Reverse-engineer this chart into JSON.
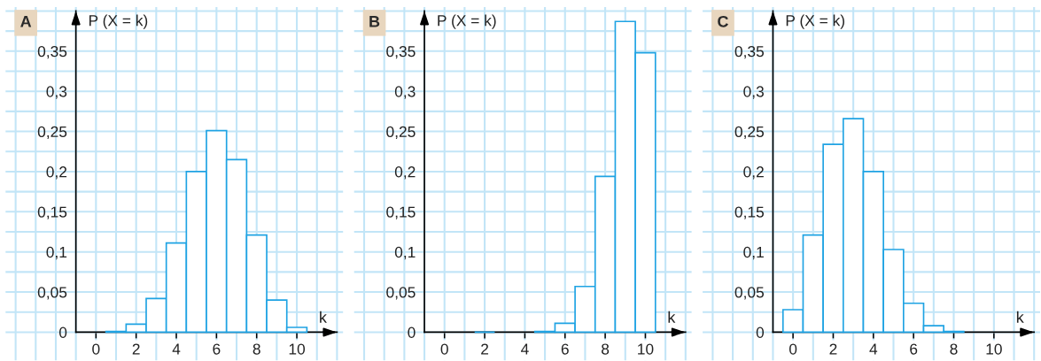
{
  "chart_data": [
    {
      "type": "histogram",
      "title": "A",
      "xlabel": "k",
      "ylabel": "P (X = k)",
      "bins": [
        -0.5,
        0.5,
        1.5,
        2.5,
        3.5,
        4.5,
        5.5,
        6.5,
        7.5,
        8.5,
        9.5,
        10.5
      ],
      "values": [
        null,
        0.001,
        0.01,
        0.042,
        0.111,
        0.2,
        0.251,
        0.215,
        0.121,
        0.04,
        0.006
      ],
      "color": "#1fa3e3",
      "xlim": [
        -4.5,
        12.3
      ],
      "ylim": [
        -0.035,
        0.405
      ],
      "xticks": [
        0,
        2,
        4,
        6,
        8,
        10
      ],
      "yticks": [
        0,
        {
          "value": 0.05,
          "label": "0,05"
        },
        {
          "value": 0.1,
          "label": "0,1"
        },
        {
          "value": 0.15,
          "label": "0,15"
        },
        {
          "value": 0.2,
          "label": "0,2"
        },
        {
          "value": 0.25,
          "label": "0,25"
        },
        {
          "value": 0.3,
          "label": "0,3"
        },
        {
          "value": 0.35,
          "label": "0,35"
        }
      ],
      "grid": true
    },
    {
      "type": "histogram",
      "title": "B",
      "xlabel": "k",
      "ylabel": "P (X = k)",
      "bins": [
        -0.5,
        0.5,
        1.5,
        2.5,
        3.5,
        4.5,
        5.5,
        6.5,
        7.5,
        8.5,
        9.5,
        10.5
      ],
      "values": [
        null,
        null,
        0,
        null,
        null,
        0.001,
        0.011,
        0.057,
        0.194,
        0.387,
        0.348
      ],
      "color": "#1fa3e3",
      "xlim": [
        -4.5,
        12.3
      ],
      "ylim": [
        -0.035,
        0.405
      ],
      "xticks": [
        0,
        2,
        4,
        6,
        8,
        10
      ],
      "yticks": [
        0,
        {
          "value": 0.05,
          "label": "0,05"
        },
        {
          "value": 0.1,
          "label": "0,1"
        },
        {
          "value": 0.15,
          "label": "0,15"
        },
        {
          "value": 0.2,
          "label": "0,2"
        },
        {
          "value": 0.25,
          "label": "0,25"
        },
        {
          "value": 0.3,
          "label": "0,3"
        },
        {
          "value": 0.35,
          "label": "0,35"
        }
      ],
      "grid": true
    },
    {
      "type": "histogram",
      "title": "C",
      "xlabel": "k",
      "ylabel": "P (X = k)",
      "bins": [
        -0.5,
        0.5,
        1.5,
        2.5,
        3.5,
        4.5,
        5.5,
        6.5,
        7.5,
        8.5,
        9.5,
        10.5
      ],
      "values": [
        0.028,
        0.121,
        0.234,
        0.266,
        0.2,
        0.103,
        0.036,
        0.008,
        0.001,
        null,
        null
      ],
      "color": "#1fa3e3",
      "xlim": [
        -4.5,
        12.3
      ],
      "ylim": [
        -0.035,
        0.405
      ],
      "xticks": [
        0,
        2,
        4,
        6,
        8,
        10
      ],
      "yticks": [
        0,
        {
          "value": 0.05,
          "label": "0,05"
        },
        {
          "value": 0.1,
          "label": "0,1"
        },
        {
          "value": 0.15,
          "label": "0,15"
        },
        {
          "value": 0.2,
          "label": "0,2"
        },
        {
          "value": 0.25,
          "label": "0,25"
        },
        {
          "value": 0.3,
          "label": "0,3"
        },
        {
          "value": 0.35,
          "label": "0,35"
        }
      ],
      "grid": true
    }
  ]
}
